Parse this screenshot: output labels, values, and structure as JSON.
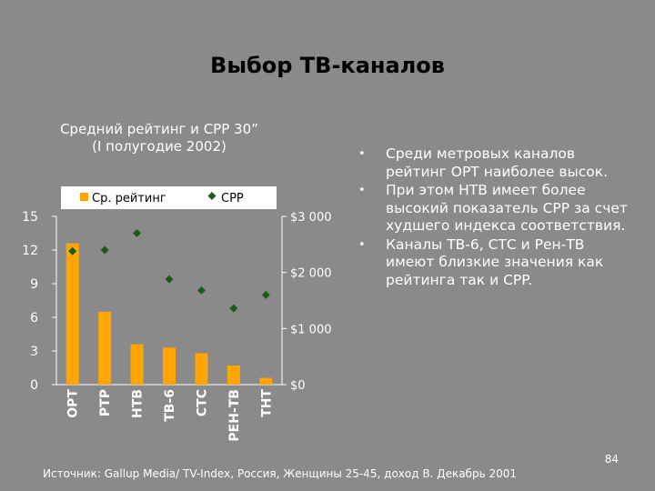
{
  "slide": {
    "title": "Выбор ТВ-каналов",
    "page_number": "84",
    "source": "Источник: Gallup Media/ TV-Index, Россия, Женщины 25-45, доход В. Декабрь 2001",
    "bullets": [
      "Среди метровых каналов рейтинг ОРТ наиболее высок.",
      "При этом НТВ имеет более высокий показатель CPP за счет худшего индекса соответствия.",
      "Каналы ТВ-6, СТС и Рен-ТВ имеют близкие значения как рейтинга так и CPP."
    ]
  },
  "chart_data": {
    "type": "bar",
    "title_lines": [
      "Средний рейтинг и  CPP 30”",
      "(I полугодие 2002)"
    ],
    "categories": [
      "ОРТ",
      "РТР",
      "НТВ",
      "ТВ-6",
      "СТС",
      "РЕН-ТВ",
      "ТНТ"
    ],
    "series": [
      {
        "name": "Ср. рейтинг",
        "kind": "bar",
        "axis": "left",
        "color": "#ffa500",
        "values": [
          12.6,
          6.5,
          3.6,
          3.3,
          2.8,
          1.7,
          0.6
        ]
      },
      {
        "name": "CPP",
        "kind": "marker",
        "axis": "right",
        "color": "#1a5c1a",
        "values": [
          2380,
          2400,
          2700,
          1880,
          1680,
          1360,
          1600
        ]
      }
    ],
    "left_axis": {
      "ticks": [
        0,
        3,
        6,
        9,
        12,
        15
      ],
      "tick_labels": [
        "0",
        "3",
        "6",
        "9",
        "12",
        "15"
      ],
      "ylim": [
        0,
        15
      ]
    },
    "right_axis": {
      "ticks": [
        0,
        1000,
        2000,
        3000
      ],
      "tick_labels": [
        "$0",
        "$1 000",
        "$2 000",
        "$3 000"
      ],
      "ylim": [
        0,
        3000
      ]
    },
    "legend_position": "top",
    "grid": false,
    "colors": {
      "background": "#8a8a8a",
      "bar": "#ffa500",
      "marker": "#1a5c1a",
      "text": "#ffffff",
      "legend_bg": "#ffffff",
      "legend_text": "#000000"
    }
  }
}
